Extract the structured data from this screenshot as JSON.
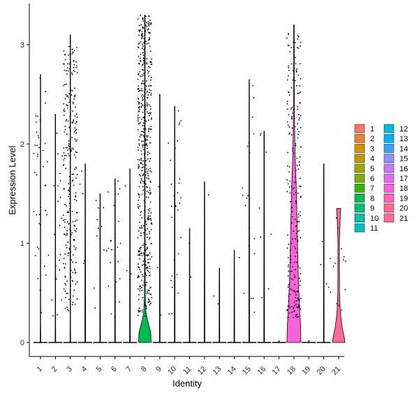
{
  "chart_data": {
    "type": "violin",
    "xlabel": "Identity",
    "ylabel": "Expression Level",
    "categories": [
      "1",
      "2",
      "3",
      "4",
      "5",
      "6",
      "7",
      "8",
      "9",
      "10",
      "11",
      "12",
      "13",
      "14",
      "15",
      "16",
      "17",
      "18",
      "19",
      "20",
      "21"
    ],
    "yticks": [
      0,
      1,
      2,
      3
    ],
    "ylim": [
      -0.15,
      3.4
    ],
    "grid": false,
    "legend_position": "right",
    "colors": [
      "#F8766D",
      "#EA8331",
      "#D89000",
      "#C09B00",
      "#A3A500",
      "#7CAE00",
      "#39B600",
      "#00BB4E",
      "#00BF7D",
      "#00C1A3",
      "#00BFC4",
      "#00BAE0",
      "#00B0F6",
      "#35A2FF",
      "#9590FF",
      "#C77CFF",
      "#E76BF3",
      "#FA62DB",
      "#FF62BC",
      "#FF6C91",
      "#FF6A98"
    ],
    "series": [
      {
        "name": "1",
        "max": 2.73,
        "violin": [
          [
            0,
            0.03
          ],
          [
            0.2,
            0.005
          ],
          [
            2.7,
            0.003
          ]
        ],
        "n_pos": 40
      },
      {
        "name": "2",
        "max": 2.3,
        "violin": [
          [
            0,
            0.03
          ],
          [
            0.2,
            0.005
          ],
          [
            2.3,
            0.003
          ]
        ],
        "n_pos": 25
      },
      {
        "name": "3",
        "max": 3.1,
        "violin": [
          [
            0,
            0.03
          ],
          [
            0.2,
            0.006
          ],
          [
            3.1,
            0.003
          ]
        ],
        "n_pos": 260
      },
      {
        "name": "4",
        "max": 1.85,
        "violin": [
          [
            0,
            0.03
          ],
          [
            1.8,
            0.003
          ]
        ],
        "n_pos": 5
      },
      {
        "name": "5",
        "max": 1.5,
        "violin": [
          [
            0,
            0.03
          ],
          [
            1.5,
            0.003
          ]
        ],
        "n_pos": 12
      },
      {
        "name": "6",
        "max": 1.67,
        "violin": [
          [
            0,
            0.03
          ],
          [
            1.65,
            0.003
          ]
        ],
        "n_pos": 22
      },
      {
        "name": "7",
        "max": 1.75,
        "violin": [
          [
            0,
            0.03
          ],
          [
            1.75,
            0.003
          ]
        ],
        "n_pos": 3
      },
      {
        "name": "8",
        "max": 3.3,
        "violin": [
          [
            0,
            0.45
          ],
          [
            0.1,
            0.42
          ],
          [
            0.22,
            0.2
          ],
          [
            0.3,
            0.08
          ],
          [
            0.5,
            0.03
          ],
          [
            1.5,
            0.02
          ],
          [
            3.3,
            0.005
          ]
        ],
        "n_pos": 520
      },
      {
        "name": "9",
        "max": 2.5,
        "violin": [
          [
            0,
            0.03
          ],
          [
            2.5,
            0.003
          ]
        ],
        "n_pos": 4
      },
      {
        "name": "10",
        "max": 2.38,
        "violin": [
          [
            0,
            0.03
          ],
          [
            2.38,
            0.003
          ]
        ],
        "n_pos": 30
      },
      {
        "name": "11",
        "max": 1.15,
        "violin": [
          [
            0,
            0.03
          ],
          [
            1.15,
            0.003
          ]
        ],
        "n_pos": 2
      },
      {
        "name": "12",
        "max": 1.62,
        "violin": [
          [
            0,
            0.03
          ],
          [
            1.62,
            0.003
          ]
        ],
        "n_pos": 2
      },
      {
        "name": "13",
        "max": 0.75,
        "violin": [
          [
            0,
            0.03
          ],
          [
            0.75,
            0.003
          ]
        ],
        "n_pos": 2
      },
      {
        "name": "14",
        "max": 0.93,
        "violin": [
          [
            0,
            0.03
          ],
          [
            0.93,
            0.003
          ]
        ],
        "n_pos": 1
      },
      {
        "name": "15",
        "max": 2.65,
        "violin": [
          [
            0,
            0.03
          ],
          [
            2.65,
            0.003
          ]
        ],
        "n_pos": 22
      },
      {
        "name": "16",
        "max": 2.13,
        "violin": [
          [
            0,
            0.03
          ],
          [
            2.13,
            0.003
          ]
        ],
        "n_pos": 8
      },
      {
        "name": "17",
        "max": 0.02,
        "violin": [
          [
            0,
            0.03
          ],
          [
            0.02,
            0.02
          ]
        ],
        "n_pos": 0
      },
      {
        "name": "18",
        "max": 3.2,
        "violin": [
          [
            0,
            0.5
          ],
          [
            0.15,
            0.48
          ],
          [
            0.3,
            0.42
          ],
          [
            0.6,
            0.32
          ],
          [
            1.0,
            0.25
          ],
          [
            1.5,
            0.18
          ],
          [
            1.9,
            0.08
          ],
          [
            2.15,
            0.05
          ],
          [
            2.6,
            0.01
          ],
          [
            3.2,
            0.003
          ]
        ],
        "n_pos": 230
      },
      {
        "name": "19",
        "max": 0.02,
        "violin": [
          [
            0,
            0.03
          ],
          [
            0.02,
            0.02
          ]
        ],
        "n_pos": 0
      },
      {
        "name": "20",
        "max": 1.8,
        "violin": [
          [
            0,
            0.03
          ],
          [
            1.8,
            0.003
          ]
        ],
        "n_pos": 6
      },
      {
        "name": "21",
        "max": 1.35,
        "violin": [
          [
            0,
            0.45
          ],
          [
            0.05,
            0.4
          ],
          [
            0.15,
            0.25
          ],
          [
            0.3,
            0.12
          ],
          [
            0.5,
            0.06
          ],
          [
            1.0,
            0.05
          ],
          [
            1.3,
            0.12
          ],
          [
            1.35,
            0.15
          ]
        ],
        "n_pos": 12
      }
    ]
  }
}
